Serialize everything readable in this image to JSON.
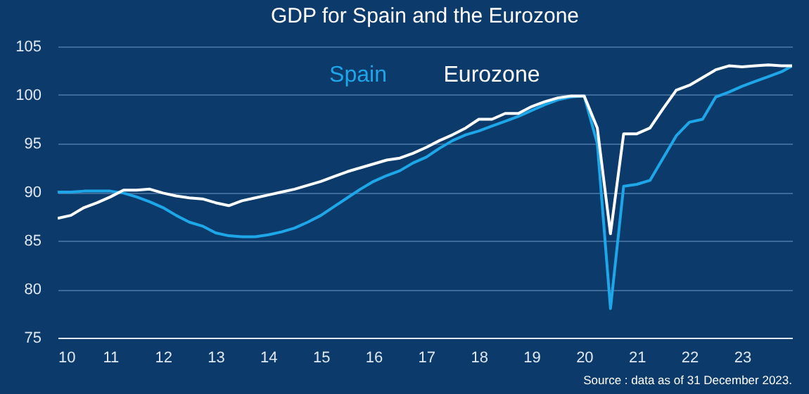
{
  "chart_data": {
    "type": "line",
    "title": "GDP for Spain and the Eurozone",
    "annotations": [
      "Source : data as of 31 December 2023."
    ],
    "x": [
      10,
      10.25,
      10.5,
      10.75,
      11,
      11.25,
      11.5,
      11.75,
      12,
      12.25,
      12.5,
      12.75,
      13,
      13.25,
      13.5,
      13.75,
      14,
      14.25,
      14.5,
      14.75,
      15,
      15.25,
      15.5,
      15.75,
      16,
      16.25,
      16.5,
      16.75,
      17,
      17.25,
      17.5,
      17.75,
      18,
      18.25,
      18.5,
      18.75,
      19,
      19.25,
      19.5,
      19.75,
      20,
      20.25,
      20.5,
      20.75,
      21,
      21.25,
      21.5,
      21.75,
      22,
      22.25,
      22.5,
      22.75,
      23,
      23.25,
      23.5,
      23.75,
      23.95
    ],
    "series": [
      {
        "name": "Spain",
        "color": "#1ea7e8",
        "values": [
          90.0,
          90.0,
          90.1,
          90.1,
          90.1,
          89.9,
          89.5,
          89.0,
          88.4,
          87.6,
          86.9,
          86.5,
          85.8,
          85.5,
          85.4,
          85.4,
          85.6,
          85.9,
          86.3,
          86.9,
          87.6,
          88.5,
          89.4,
          90.3,
          91.1,
          91.7,
          92.2,
          93.0,
          93.6,
          94.5,
          95.3,
          95.9,
          96.3,
          96.8,
          97.3,
          97.8,
          98.4,
          99.0,
          99.5,
          99.8,
          99.9,
          95.0,
          78.0,
          90.6,
          90.8,
          91.2,
          93.5,
          95.8,
          97.2,
          97.5,
          99.8,
          100.3,
          100.9,
          101.4,
          101.9,
          102.4,
          103.0
        ]
      },
      {
        "name": "Eurozone",
        "color": "#ffffff",
        "values": [
          87.3,
          87.6,
          88.4,
          88.9,
          89.5,
          90.2,
          90.2,
          90.3,
          89.9,
          89.6,
          89.4,
          89.3,
          88.9,
          88.6,
          89.1,
          89.4,
          89.7,
          90.0,
          90.3,
          90.7,
          91.1,
          91.6,
          92.1,
          92.5,
          92.9,
          93.3,
          93.5,
          94.0,
          94.6,
          95.3,
          95.9,
          96.6,
          97.5,
          97.5,
          98.1,
          98.1,
          98.8,
          99.3,
          99.7,
          99.9,
          99.9,
          96.6,
          85.7,
          96.0,
          96.0,
          96.6,
          98.6,
          100.5,
          101.0,
          101.8,
          102.6,
          103.0,
          102.9,
          103.0,
          103.1,
          103.0,
          103.0
        ]
      }
    ],
    "xlim": [
      10,
      23.95
    ],
    "xticks": [
      10,
      11,
      12,
      13,
      14,
      15,
      16,
      17,
      18,
      19,
      20,
      21,
      22,
      23
    ],
    "ylim": [
      75,
      105
    ],
    "yticks": [
      75,
      80,
      85,
      90,
      95,
      100,
      105
    ],
    "grid": "y",
    "legend": "top",
    "marker": "none",
    "line_style": "solid"
  }
}
